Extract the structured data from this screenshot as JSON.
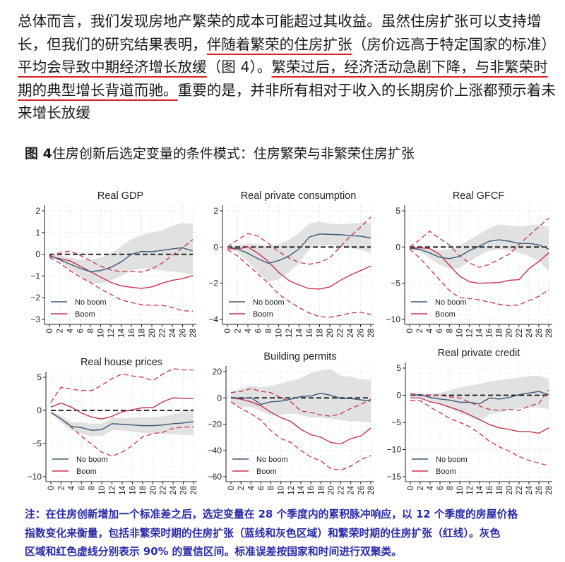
{
  "paragraph": {
    "lines": [
      [
        {
          "text": "总体而言，我们发现房地产繁荣的成本可能超过其收益。虽然住房扩张可以支持增",
          "underline": false
        }
      ],
      [
        {
          "text": "长，但我们的研究结果表明，",
          "underline": false
        },
        {
          "text": "伴随着繁荣的住房扩张",
          "underline": true
        },
        {
          "text": "（房价远高于特定国家的标准）",
          "underline": false
        }
      ],
      [
        {
          "text": "平均会导致中期经济增长放缓",
          "underline": true
        },
        {
          "text": "（图 4）。",
          "underline": false
        },
        {
          "text": "繁荣过后，经济活动急剧下降，与非繁荣时",
          "underline": true
        }
      ],
      [
        {
          "text": "期的典型增长背道而驰。",
          "underline": true
        },
        {
          "text": "重要的是，并非所有相对于收入的长期房价上涨都预示着未",
          "underline": false
        }
      ],
      [
        {
          "text": "来增长放缓",
          "underline": false
        }
      ]
    ]
  },
  "figure": {
    "label": "图 4",
    "title": "住房创新后选定变量的条件模式：住房繁荣与非繁荣住房扩张"
  },
  "note": {
    "lines": [
      "注：在住房创新增加一个标准差之后，选定变量在 28 个季度内的累积脉冲响应，以 12 个季度的房屋价格",
      "指数变化来衡量，包括非繁荣时期的住房扩张（蓝线和灰色区域）和繁荣时期的住房扩张（红线）。灰色",
      "区域和红色虚线分别表示 90% 的置信区间。标准误差按国家和时间进行双聚类。"
    ]
  },
  "colors": {
    "no_boom": "#3b5877",
    "boom": "#c7344c",
    "band": "#e1e1e1",
    "note": "#2b2aa6",
    "underline": "#d8202a"
  },
  "chart_data": [
    {
      "type": "line",
      "title": "Real GDP",
      "x": [
        0,
        2,
        4,
        6,
        8,
        10,
        12,
        14,
        16,
        18,
        20,
        22,
        24,
        26,
        28
      ],
      "xticks": [
        "0",
        "2",
        "4",
        "6",
        "8",
        "10",
        "12",
        "14",
        "16",
        "18",
        "20",
        "22",
        "24",
        "26",
        "28"
      ],
      "yticks": [
        2,
        1,
        0,
        -1,
        -2,
        -3
      ],
      "ylim": [
        -3,
        2
      ],
      "legend": "bottom-left",
      "grid": true,
      "series": [
        {
          "name": "No boom",
          "values": [
            -0.05,
            -0.25,
            -0.45,
            -0.65,
            -0.8,
            -0.75,
            -0.6,
            -0.35,
            0.0,
            0.13,
            0.12,
            0.18,
            0.25,
            0.3,
            0.15
          ],
          "ci_lower": [
            -0.05,
            -0.3,
            -0.7,
            -1.0,
            -1.3,
            -1.35,
            -1.2,
            -1.0,
            -0.75,
            -0.65,
            -0.7,
            -0.75,
            -0.8,
            -0.85,
            -0.95
          ],
          "ci_upper": [
            0,
            -0.05,
            -0.15,
            -0.25,
            -0.25,
            -0.15,
            0.05,
            0.35,
            0.7,
            0.9,
            1.0,
            1.1,
            1.3,
            1.45,
            1.4
          ]
        },
        {
          "name": "Boom",
          "values": [
            -0.1,
            -0.2,
            -0.3,
            -0.55,
            -0.8,
            -1.05,
            -1.3,
            -1.45,
            -1.52,
            -1.57,
            -1.5,
            -1.33,
            -1.2,
            -1.12,
            -0.98
          ],
          "ci_lower": [
            -0.15,
            -0.4,
            -0.75,
            -1.05,
            -1.3,
            -1.6,
            -1.85,
            -2.1,
            -2.22,
            -2.32,
            -2.35,
            -2.35,
            -2.45,
            -2.6,
            -2.62
          ],
          "ci_upper": [
            -0.05,
            0.05,
            0.15,
            -0.05,
            -0.3,
            -0.55,
            -0.72,
            -0.8,
            -0.8,
            -0.82,
            -0.68,
            -0.4,
            -0.05,
            0.3,
            0.68
          ]
        }
      ]
    },
    {
      "type": "line",
      "title": "Real private consumption",
      "x": [
        0,
        2,
        4,
        6,
        8,
        10,
        12,
        14,
        16,
        18,
        20,
        22,
        24,
        26,
        28
      ],
      "xticks": [
        "0",
        "2",
        "4",
        "6",
        "8",
        "10",
        "12",
        "14",
        "16",
        "18",
        "20",
        "22",
        "24",
        "26",
        "28"
      ],
      "yticks": [
        2,
        0,
        -2,
        -4
      ],
      "ylim": [
        -4,
        2
      ],
      "legend": "bottom-left",
      "grid": true,
      "series": [
        {
          "name": "No boom",
          "values": [
            0,
            -0.1,
            -0.35,
            -0.65,
            -0.9,
            -0.75,
            -0.5,
            -0.1,
            0.55,
            0.72,
            0.7,
            0.68,
            0.63,
            0.6,
            0.5
          ],
          "ci_lower": [
            0,
            -0.3,
            -0.8,
            -1.4,
            -1.9,
            -1.8,
            -1.4,
            -0.9,
            -0.1,
            0.1,
            0.1,
            0.05,
            -0.05,
            -0.15,
            -0.35
          ],
          "ci_upper": [
            0,
            0.1,
            0.2,
            0.15,
            0.05,
            0.15,
            0.4,
            0.8,
            1.3,
            1.4,
            1.3,
            1.25,
            1.3,
            1.35,
            1.35
          ]
        },
        {
          "name": "Boom",
          "values": [
            -0.1,
            -0.1,
            0,
            -0.35,
            -0.8,
            -1.4,
            -1.85,
            -2.1,
            -2.3,
            -2.32,
            -2.2,
            -1.85,
            -1.55,
            -1.3,
            -1.05
          ],
          "ci_lower": [
            -0.15,
            -0.5,
            -1.0,
            -1.5,
            -2.0,
            -2.6,
            -3.0,
            -3.35,
            -3.65,
            -3.85,
            -3.88,
            -3.78,
            -3.65,
            -3.6,
            -3.72
          ],
          "ci_upper": [
            0,
            0.4,
            0.75,
            0.6,
            0.2,
            -0.25,
            -0.6,
            -0.85,
            -0.95,
            -0.85,
            -0.6,
            0.0,
            0.6,
            1.1,
            1.65
          ]
        }
      ]
    },
    {
      "type": "line",
      "title": "Real GFCF",
      "x": [
        0,
        2,
        4,
        6,
        8,
        10,
        12,
        14,
        16,
        18,
        20,
        22,
        24,
        26,
        28
      ],
      "xticks": [
        "0",
        "2",
        "4",
        "6",
        "8",
        "10",
        "12",
        "14",
        "16",
        "18",
        "20",
        "22",
        "24",
        "26",
        "28"
      ],
      "yticks": [
        5,
        0,
        -5,
        -10
      ],
      "ylim": [
        -10,
        5
      ],
      "legend": "bottom-left",
      "grid": true,
      "series": [
        {
          "name": "No boom",
          "values": [
            -0.2,
            -0.3,
            -0.8,
            -1.4,
            -1.6,
            -1.3,
            -0.5,
            0.1,
            0.8,
            1.0,
            0.8,
            0.5,
            0.5,
            0.3,
            -0.3
          ],
          "ci_lower": [
            -0.2,
            -0.6,
            -1.5,
            -2.4,
            -3.0,
            -2.9,
            -2.0,
            -1.2,
            -0.5,
            -0.3,
            -0.5,
            -0.8,
            -1.2,
            -2.0,
            -3.3
          ],
          "ci_upper": [
            -0.1,
            0,
            -0.2,
            -0.4,
            -0.3,
            0.2,
            1.0,
            1.8,
            2.6,
            3.1,
            3.0,
            2.8,
            3.0,
            3.1,
            2.8
          ]
        },
        {
          "name": "Boom",
          "values": [
            -0.2,
            -0.1,
            -0.2,
            -1.0,
            -2.5,
            -4.0,
            -4.8,
            -5.0,
            -4.95,
            -4.9,
            -4.6,
            -4.5,
            -3.0,
            -2.0,
            -0.8
          ],
          "ci_lower": [
            -0.3,
            -1.5,
            -3.0,
            -4.5,
            -6.0,
            -7.0,
            -7.1,
            -7.3,
            -7.6,
            -7.9,
            -8.1,
            -8.0,
            -7.4,
            -6.8,
            -5.9
          ],
          "ci_upper": [
            0,
            1.0,
            2.2,
            1.2,
            0.3,
            -1.2,
            -2.2,
            -2.8,
            -2.4,
            -1.7,
            -1.0,
            0.3,
            1.6,
            2.8,
            4.0
          ]
        }
      ]
    },
    {
      "type": "line",
      "title": "Real house prices",
      "x": [
        0,
        2,
        4,
        6,
        8,
        10,
        12,
        14,
        16,
        18,
        20,
        22,
        24,
        26,
        28
      ],
      "xticks": [
        "0",
        "2",
        "4",
        "6",
        "8",
        "10",
        "12",
        "14",
        "16",
        "18",
        "20",
        "22",
        "24",
        "26",
        "28"
      ],
      "yticks": [
        5,
        0,
        -5,
        -10
      ],
      "ylim": [
        -10,
        5
      ],
      "legend": "bottom-left",
      "grid": true,
      "series": [
        {
          "name": "No boom",
          "values": [
            -0.3,
            -1.3,
            -2.4,
            -2.6,
            -3.0,
            -2.9,
            -2.0,
            -2.1,
            -2.2,
            -2.3,
            -2.3,
            -2.2,
            -2.0,
            -1.9,
            -1.7
          ],
          "ci_lower": [
            -0.4,
            -1.8,
            -3.0,
            -3.5,
            -3.9,
            -3.9,
            -3.0,
            -3.0,
            -3.2,
            -3.4,
            -3.5,
            -3.5,
            -3.6,
            -3.7,
            -3.7
          ],
          "ci_upper": [
            -0.2,
            -0.8,
            -1.8,
            -1.8,
            -2.0,
            -2.0,
            -1.1,
            -1.2,
            -1.1,
            -1.0,
            -1.0,
            -0.9,
            -0.6,
            -0.2,
            0.3
          ]
        },
        {
          "name": "Boom",
          "values": [
            0.5,
            1.1,
            0.5,
            -0.4,
            -1.0,
            -1.3,
            -0.9,
            -0.2,
            0.1,
            0.4,
            0.4,
            1.3,
            1.9,
            1.8,
            1.8
          ],
          "ci_lower": [
            -0.3,
            -1.3,
            -2.5,
            -3.9,
            -5.1,
            -6.3,
            -6.9,
            -6.3,
            -5.3,
            -4.0,
            -3.5,
            -3.3,
            -2.7,
            -2.5,
            -2.5
          ],
          "ci_upper": [
            1.2,
            3.5,
            3.2,
            3.0,
            3.0,
            3.8,
            4.8,
            5.5,
            5.2,
            5.0,
            4.5,
            5.5,
            6.3,
            6.1,
            6.1
          ]
        }
      ]
    },
    {
      "type": "line",
      "title": "Building permits",
      "x": [
        0,
        2,
        4,
        6,
        8,
        10,
        12,
        14,
        16,
        18,
        20,
        22,
        24,
        26,
        28
      ],
      "xticks": [
        "0",
        "2",
        "4",
        "6",
        "8",
        "10",
        "12",
        "14",
        "16",
        "18",
        "20",
        "22",
        "24",
        "26",
        "28"
      ],
      "yticks": [
        20,
        0,
        -20,
        -40,
        -60
      ],
      "ylim": [
        -60,
        20
      ],
      "legend": "bottom-left",
      "grid": true,
      "series": [
        {
          "name": "No boom",
          "values": [
            0.5,
            -0.5,
            0.3,
            -5,
            -3,
            -2.5,
            -1,
            1,
            1.5,
            3.5,
            2,
            -0.5,
            -0.5,
            -1.5,
            -2.5
          ],
          "ci_lower": [
            -3,
            -7,
            -7,
            -10,
            -13,
            -13,
            -12,
            -13,
            -15,
            -15,
            -16,
            -17,
            -18,
            -18,
            -19
          ],
          "ci_upper": [
            5,
            7,
            9,
            8,
            9,
            11,
            13,
            15,
            19,
            21,
            22,
            17,
            16,
            14,
            14
          ]
        },
        {
          "name": "Boom",
          "values": [
            0,
            -1,
            -3,
            -6,
            -11,
            -15,
            -18,
            -24,
            -28,
            -30,
            -34,
            -35,
            -31,
            -29,
            -23
          ],
          "ci_lower": [
            -3,
            -8,
            -12,
            -17,
            -25,
            -31,
            -34,
            -40,
            -45,
            -48,
            -54,
            -55,
            -52,
            -47,
            -44
          ],
          "ci_upper": [
            4,
            5,
            7,
            5,
            4,
            0,
            -3,
            -10,
            -11,
            -13,
            -14,
            -12,
            -8,
            -5,
            -1
          ]
        }
      ]
    },
    {
      "type": "line",
      "title": "Real private credit",
      "x": [
        0,
        2,
        4,
        6,
        8,
        10,
        12,
        14,
        16,
        18,
        20,
        22,
        24,
        26,
        28
      ],
      "xticks": [
        "0",
        "2",
        "4",
        "6",
        "8",
        "10",
        "12",
        "14",
        "16",
        "18",
        "20",
        "22",
        "24",
        "26",
        "28"
      ],
      "yticks": [
        5,
        0,
        -5,
        -10,
        -15
      ],
      "ylim": [
        -15,
        5
      ],
      "legend": "bottom-left",
      "grid": true,
      "series": [
        {
          "name": "No boom",
          "values": [
            0,
            0.1,
            -0.4,
            -0.7,
            -0.9,
            -1.3,
            -1.3,
            -1.6,
            -0.5,
            -0.7,
            -0.4,
            0.1,
            0.4,
            0.7,
            0.1
          ],
          "ci_lower": [
            -0.3,
            -0.3,
            -1,
            -1.7,
            -2.5,
            -3.3,
            -4,
            -4.8,
            -3.5,
            -3.2,
            -2.8,
            -2.4,
            -2.3,
            -2.2,
            -2.6
          ],
          "ci_upper": [
            0.2,
            0.3,
            0.3,
            0.4,
            0.9,
            1.4,
            1.8,
            2.1,
            2.5,
            2.8,
            3.0,
            3.3,
            3.5,
            3.6,
            3.0
          ]
        },
        {
          "name": "Boom",
          "values": [
            -0.5,
            -0.5,
            -1.2,
            -1.6,
            -2.2,
            -2.8,
            -3.6,
            -4.5,
            -5.4,
            -6.0,
            -6.3,
            -6.7,
            -6.7,
            -7.0,
            -6.0
          ],
          "ci_lower": [
            -1.0,
            -1.0,
            -2.2,
            -3.2,
            -4.3,
            -5.0,
            -5.8,
            -7.0,
            -8.5,
            -9.5,
            -10.3,
            -11.3,
            -12.0,
            -12.5,
            -13.0
          ],
          "ci_upper": [
            0.3,
            0.1,
            0.0,
            0.0,
            -0.3,
            -0.5,
            -1.3,
            -2.0,
            -2.6,
            -2.8,
            -2.6,
            -2.8,
            -2.0,
            -1.5,
            1.0
          ]
        }
      ]
    }
  ]
}
